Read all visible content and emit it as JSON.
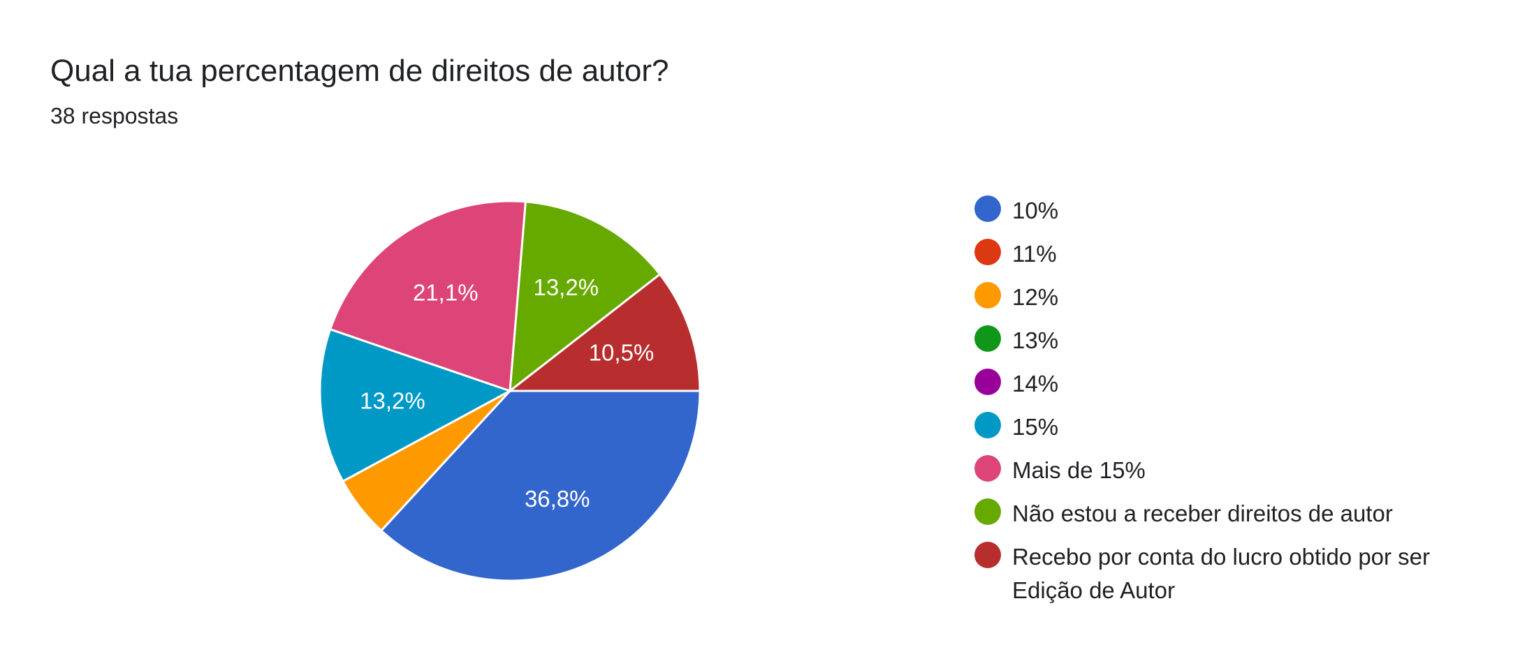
{
  "header": {
    "title": "Qual a tua percentagem de direitos de autor?",
    "subtitle": "38 respostas"
  },
  "chart_data": {
    "type": "pie",
    "title": "Qual a tua percentagem de direitos de autor?",
    "categories": [
      "10%",
      "11%",
      "12%",
      "13%",
      "14%",
      "15%",
      "Mais de 15%",
      "Não estou a receber direitos de autor",
      "Recebo por conta do lucro obtido por ser Edição de Autor"
    ],
    "values": [
      14,
      0,
      2,
      0,
      0,
      5,
      8,
      5,
      4
    ],
    "percent_labels": [
      "36,8%",
      "",
      "",
      "",
      "",
      "13,2%",
      "21,1%",
      "13,2%",
      "10,5%"
    ],
    "colors": [
      "#3366cc",
      "#dc3912",
      "#ff9900",
      "#109618",
      "#990099",
      "#0099c6",
      "#dd4477",
      "#66aa00",
      "#b82e2e"
    ],
    "legend_position": "right"
  }
}
